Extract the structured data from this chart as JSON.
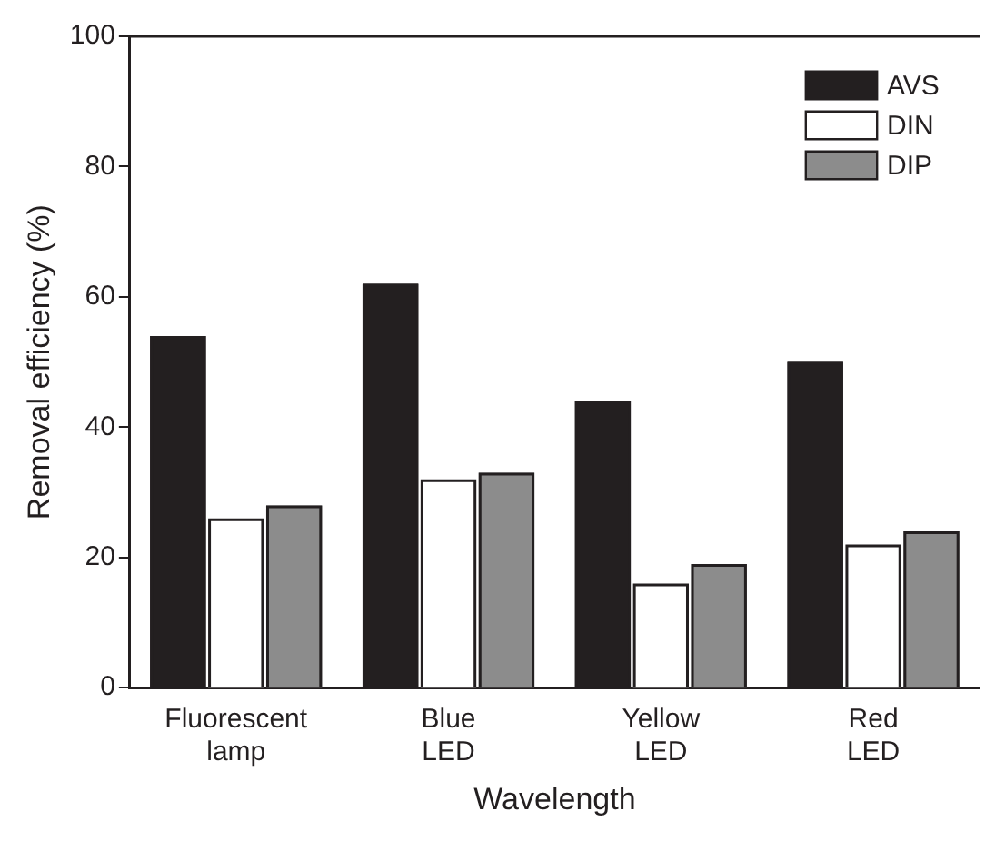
{
  "chart_data": {
    "type": "bar",
    "xlabel": "Wavelength",
    "ylabel": "Removal efficiency (%)",
    "categories": [
      "Fluorescent\nlamp",
      "Blue\nLED",
      "Yellow\nLED",
      "Red\nLED"
    ],
    "series": [
      {
        "name": "AVS",
        "color": "#231f20",
        "values": [
          54,
          62,
          44,
          50
        ]
      },
      {
        "name": "DIN",
        "color": "#ffffff",
        "values": [
          26,
          32,
          16,
          22
        ]
      },
      {
        "name": "DIP",
        "color": "#8c8c8c",
        "values": [
          28,
          33,
          19,
          24
        ]
      }
    ],
    "ylim": [
      0,
      100
    ],
    "yticks": [
      0,
      20,
      40,
      60,
      80,
      100
    ],
    "grid": false,
    "legend": "top right"
  }
}
